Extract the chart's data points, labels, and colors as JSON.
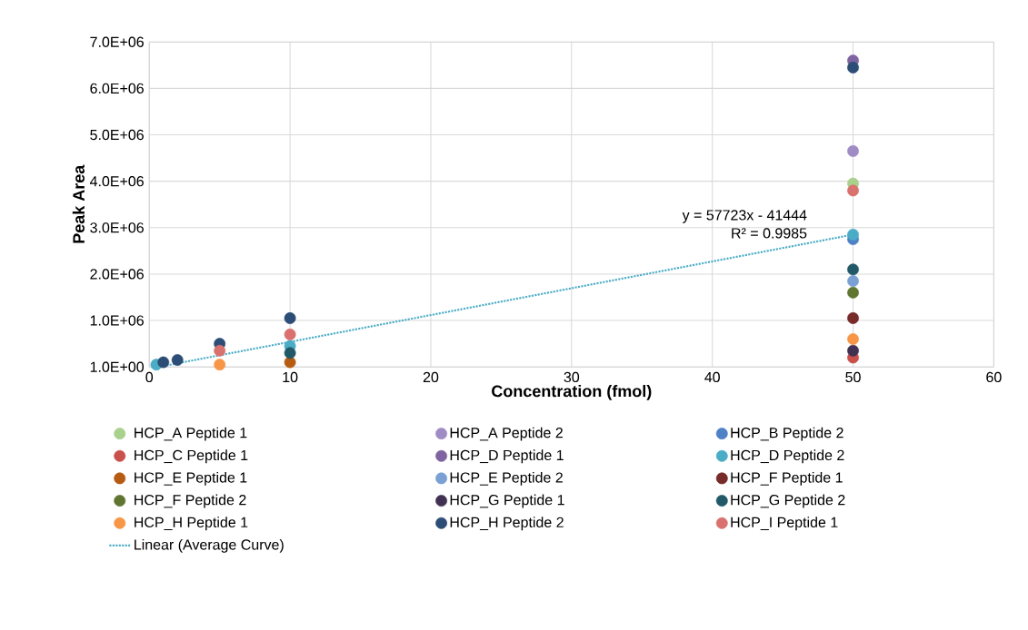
{
  "chart_data": {
    "type": "scatter",
    "xlabel": "Concentration (fmol)",
    "ylabel": "Peak Area",
    "x": [
      0.5,
      1,
      2,
      5,
      10,
      50
    ],
    "xlim": [
      0,
      60
    ],
    "xticks": [
      0,
      10,
      20,
      30,
      40,
      50,
      60
    ],
    "ylim": [
      1,
      7000000
    ],
    "yticks": [
      {
        "value": 1,
        "label": "1.0E+00"
      },
      {
        "value": 1000000,
        "label": "1.0E+06"
      },
      {
        "value": 2000000,
        "label": "2.0E+06"
      },
      {
        "value": 3000000,
        "label": "3.0E+06"
      },
      {
        "value": 4000000,
        "label": "4.0E+06"
      },
      {
        "value": 5000000,
        "label": "5.0E+06"
      },
      {
        "value": 6000000,
        "label": "6.0E+06"
      },
      {
        "value": 7000000,
        "label": "7.0E+06"
      }
    ],
    "grid": true,
    "legend": "bottom",
    "series": [
      {
        "name": "HCP_A Peptide 1",
        "color": "#a9d18e",
        "marker": "circle",
        "values": [
          null,
          null,
          null,
          null,
          null,
          3950000
        ]
      },
      {
        "name": "HCP_A Peptide 2",
        "color": "#a08cc4",
        "marker": "circle",
        "values": [
          null,
          null,
          null,
          null,
          null,
          4650000
        ]
      },
      {
        "name": "HCP_B Peptide 2",
        "color": "#4f81c7",
        "marker": "circle",
        "values": [
          null,
          null,
          null,
          null,
          null,
          2750000
        ]
      },
      {
        "name": "HCP_C Peptide 1",
        "color": "#c9504b",
        "marker": "circle",
        "values": [
          null,
          null,
          null,
          null,
          null,
          200000
        ]
      },
      {
        "name": "HCP_D Peptide 1",
        "color": "#8064a2",
        "marker": "circle",
        "values": [
          null,
          null,
          null,
          null,
          null,
          6600000
        ]
      },
      {
        "name": "HCP_D Peptide 2",
        "color": "#4bacc6",
        "marker": "circle",
        "values": [
          50000,
          null,
          null,
          null,
          450000,
          2850000
        ]
      },
      {
        "name": "HCP_E Peptide 1",
        "color": "#b65b12",
        "marker": "circle",
        "values": [
          null,
          null,
          null,
          null,
          100000,
          null
        ]
      },
      {
        "name": "HCP_E Peptide 2",
        "color": "#7aa0d4",
        "marker": "circle",
        "values": [
          null,
          null,
          null,
          null,
          null,
          1850000
        ]
      },
      {
        "name": "HCP_F Peptide 1",
        "color": "#772c2a",
        "marker": "circle",
        "values": [
          null,
          null,
          null,
          null,
          null,
          1050000
        ]
      },
      {
        "name": "HCP_F Peptide 2",
        "color": "#5f7530",
        "marker": "circle",
        "values": [
          null,
          null,
          null,
          null,
          null,
          1600000
        ]
      },
      {
        "name": "HCP_G Peptide 1",
        "color": "#403152",
        "marker": "circle",
        "values": [
          null,
          null,
          null,
          null,
          null,
          350000
        ]
      },
      {
        "name": "HCP_G Peptide 2",
        "color": "#215968",
        "marker": "circle",
        "values": [
          null,
          null,
          null,
          null,
          300000,
          2100000
        ]
      },
      {
        "name": "HCP_H Peptide 1",
        "color": "#f79646",
        "marker": "circle",
        "values": [
          null,
          null,
          null,
          50000,
          null,
          600000
        ]
      },
      {
        "name": "HCP_H Peptide 2",
        "color": "#2c4d75",
        "marker": "circle",
        "values": [
          null,
          100000,
          150000,
          500000,
          1050000,
          6450000
        ]
      },
      {
        "name": "HCP_I Peptide 1",
        "color": "#d9726f",
        "marker": "circle",
        "values": [
          null,
          null,
          null,
          350000,
          700000,
          3800000
        ]
      },
      {
        "name": "Linear (Average Curve)",
        "type": "line",
        "marker": "none",
        "line_style": "dotted",
        "color": "#4bacc6",
        "x": [
          1,
          50
        ],
        "values": [
          20000,
          2850000
        ]
      }
    ],
    "annotations": [
      "y = 57723x - 41444",
      "R² = 0.9985"
    ]
  }
}
